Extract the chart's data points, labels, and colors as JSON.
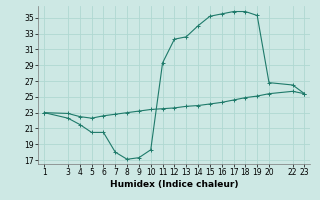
{
  "xlabel": "Humidex (Indice chaleur)",
  "background_color": "#cde8e4",
  "line_color": "#1e7a6a",
  "grid_color": "#b0d8d2",
  "x_vals": [
    1,
    3,
    4,
    5,
    6,
    7,
    8,
    9,
    10,
    11,
    12,
    13,
    14,
    15,
    16,
    17,
    18,
    19,
    20,
    22,
    23
  ],
  "y_humidex": [
    23,
    22.3,
    21.5,
    20.5,
    20.5,
    18.0,
    17.1,
    17.3,
    18.3,
    29.3,
    32.3,
    32.6,
    34.0,
    35.2,
    35.5,
    35.8,
    35.8,
    35.3,
    26.8,
    26.5,
    25.4
  ],
  "y_ref": [
    23,
    22.9,
    22.5,
    22.3,
    22.6,
    22.8,
    23.0,
    23.2,
    23.4,
    23.5,
    23.6,
    23.8,
    23.9,
    24.1,
    24.3,
    24.6,
    24.9,
    25.1,
    25.4,
    25.7,
    25.4
  ],
  "xlim": [
    0.5,
    23.5
  ],
  "ylim": [
    16.5,
    36.5
  ],
  "yticks": [
    17,
    19,
    21,
    23,
    25,
    27,
    29,
    31,
    33,
    35
  ],
  "xticks": [
    1,
    3,
    4,
    5,
    6,
    7,
    8,
    9,
    10,
    11,
    12,
    13,
    14,
    15,
    16,
    17,
    18,
    19,
    20,
    22,
    23
  ],
  "xticklabels": [
    "1",
    "3",
    "4",
    "5",
    "6",
    "7",
    "8",
    "9",
    "10",
    "11",
    "12",
    "13",
    "14",
    "15",
    "16",
    "17",
    "18",
    "19",
    "20",
    "22",
    "23"
  ]
}
